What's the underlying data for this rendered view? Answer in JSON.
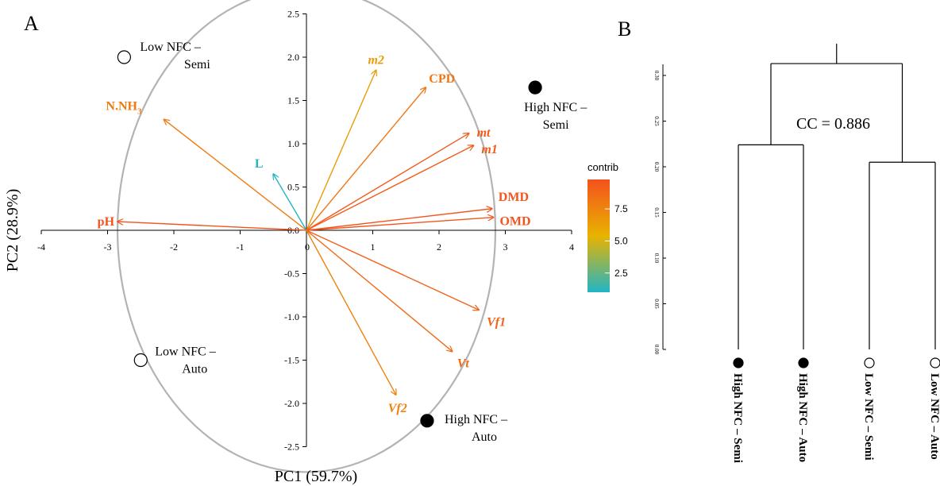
{
  "panels": {
    "a": "A",
    "b": "B"
  },
  "chart_data": [
    {
      "type": "scatter",
      "subtype": "pca-biplot",
      "xlabel": "PC1 (59.7%)",
      "ylabel": "PC2 (28.9%)",
      "xlim": [
        -4,
        4
      ],
      "ylim": [
        -2.5,
        2.5
      ],
      "x_ticks": [
        "-4",
        "-3",
        "-2",
        "-1",
        "0",
        "1",
        "2",
        "3",
        "4"
      ],
      "y_ticks": [
        "2.5",
        "2.0",
        "1.5",
        "1.0",
        "0.5",
        "0.0",
        "-0.5",
        "-1.0",
        "-1.5",
        "-2.0",
        "-2.5"
      ],
      "circle_radius": 2.85,
      "variables": [
        {
          "name": "m2",
          "italic": true,
          "x": 1.05,
          "y": 1.85,
          "contrib": 6.5
        },
        {
          "name": "CPD",
          "italic": false,
          "x": 1.8,
          "y": 1.65,
          "contrib": 8.2
        },
        {
          "name": "N.NH",
          "sub": "3",
          "italic": false,
          "x": -2.15,
          "y": 1.28,
          "contrib": 7.9
        },
        {
          "name": "mt",
          "italic": true,
          "x": 2.45,
          "y": 1.12,
          "contrib": 9.4
        },
        {
          "name": "m1",
          "italic": true,
          "x": 2.52,
          "y": 0.98,
          "contrib": 9.3
        },
        {
          "name": "L",
          "italic": false,
          "x": -0.5,
          "y": 0.65,
          "contrib": 1.0
        },
        {
          "name": "DMD",
          "italic": false,
          "x": 2.8,
          "y": 0.25,
          "contrib": 9.6
        },
        {
          "name": "OMD",
          "italic": false,
          "x": 2.82,
          "y": 0.15,
          "contrib": 9.6
        },
        {
          "name": "pH",
          "italic": false,
          "x": -2.85,
          "y": 0.1,
          "contrib": 9.7
        },
        {
          "name": "Vf1",
          "italic": true,
          "x": 2.6,
          "y": -0.92,
          "contrib": 9.0
        },
        {
          "name": "Vt",
          "italic": true,
          "x": 2.2,
          "y": -1.4,
          "contrib": 8.7
        },
        {
          "name": "Vf2",
          "italic": true,
          "x": 1.35,
          "y": -1.9,
          "contrib": 7.6
        }
      ],
      "observations": [
        {
          "name": "Low NFC – Semi",
          "line1": "Low NFC  –",
          "line2": "Semi",
          "x": -2.75,
          "y": 2.0,
          "filled": false
        },
        {
          "name": "High NFC – Semi",
          "line1": "High NFC –",
          "line2": "Semi",
          "x": 3.45,
          "y": 1.65,
          "filled": true
        },
        {
          "name": "Low NFC – Auto",
          "line1": "Low NFC –",
          "line2": "Auto",
          "x": -2.5,
          "y": -1.5,
          "filled": false
        },
        {
          "name": "High NFC – Auto",
          "line1": "High NFC –",
          "line2": "Auto",
          "x": 1.82,
          "y": -2.2,
          "filled": true
        }
      ],
      "legend": {
        "title": "contrib",
        "range": [
          1,
          9.8
        ],
        "ticks": [
          "7.5",
          "5.0",
          "2.5"
        ],
        "colors": {
          "low": "#22b5c6",
          "mid": "#e8b300",
          "high": "#f4511e"
        }
      },
      "arrow_color_fallback": "#f26522",
      "grid": false
    },
    {
      "type": "dendrogram",
      "annotation": "CC = 0.886",
      "ylim": [
        0.0,
        0.3
      ],
      "y_ticks": [
        "0.30",
        "0.25",
        "0.20",
        "0.15",
        "0.10",
        "0.05",
        "0.00"
      ],
      "leaves": [
        {
          "label": "High NFC – Semi",
          "filled": true
        },
        {
          "label": "High NFC – Auto",
          "filled": true
        },
        {
          "label": "Low NFC – Semi",
          "filled": false
        },
        {
          "label": "Low NFC – Auto",
          "filled": false
        }
      ],
      "merges": [
        {
          "left": 0,
          "right": 1,
          "height": 0.224
        },
        {
          "left": 2,
          "right": 3,
          "height": 0.205
        },
        {
          "left": "m0",
          "right": "m1",
          "height": 0.313
        }
      ]
    }
  ]
}
